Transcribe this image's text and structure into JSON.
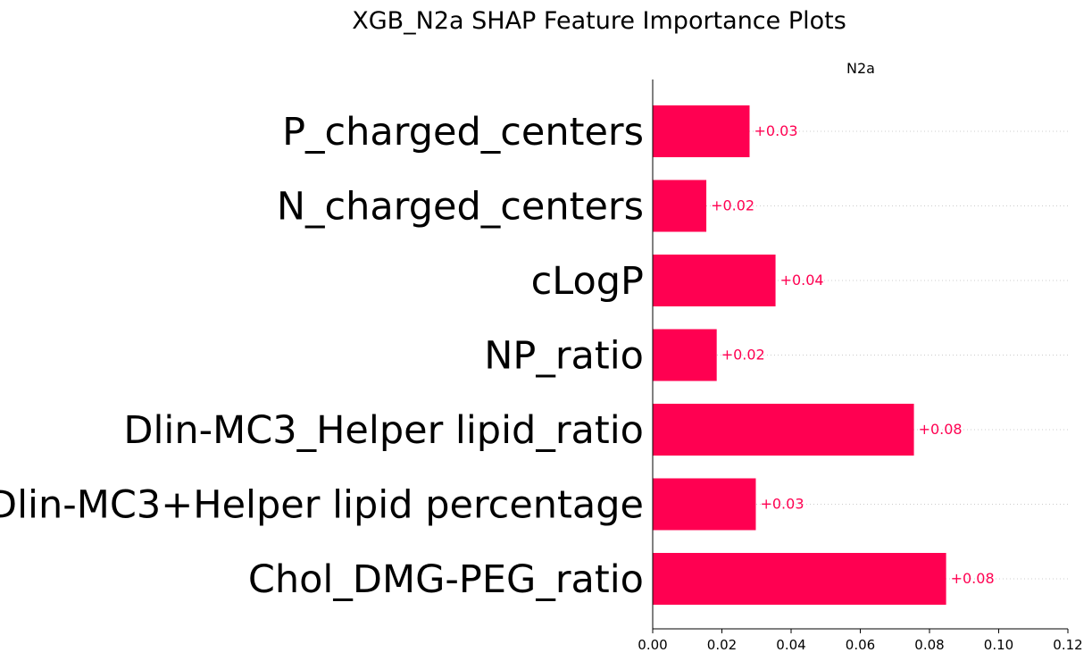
{
  "colors": {
    "bar": "#ff0051",
    "axis": "#000000",
    "grid": "#cccccc"
  },
  "chart_data": {
    "type": "bar",
    "orientation": "horizontal",
    "title": "XGB_N2a SHAP Feature Importance Plots",
    "panel_title": "N2a",
    "xlabel": "",
    "ylabel": "",
    "xlim": [
      0,
      0.12
    ],
    "x_ticks": [
      "0.00",
      "0.02",
      "0.04",
      "0.06",
      "0.08",
      "0.10",
      "0.12"
    ],
    "grid": "dotted horizontal lines behind each bar",
    "categories": [
      "P_charged_centers",
      "N_charged_centers",
      "cLogP",
      "NP_ratio",
      "Dlin-MC3_Helper lipid_ratio",
      "Dlin-MC3+Helper lipid percentage",
      "Chol_DMG-PEG_ratio"
    ],
    "values": [
      0.028,
      0.0155,
      0.0355,
      0.0185,
      0.0755,
      0.0298,
      0.0848
    ],
    "value_labels": [
      "+0.03",
      "+0.02",
      "+0.04",
      "+0.02",
      "+0.08",
      "+0.03",
      "+0.08"
    ]
  }
}
